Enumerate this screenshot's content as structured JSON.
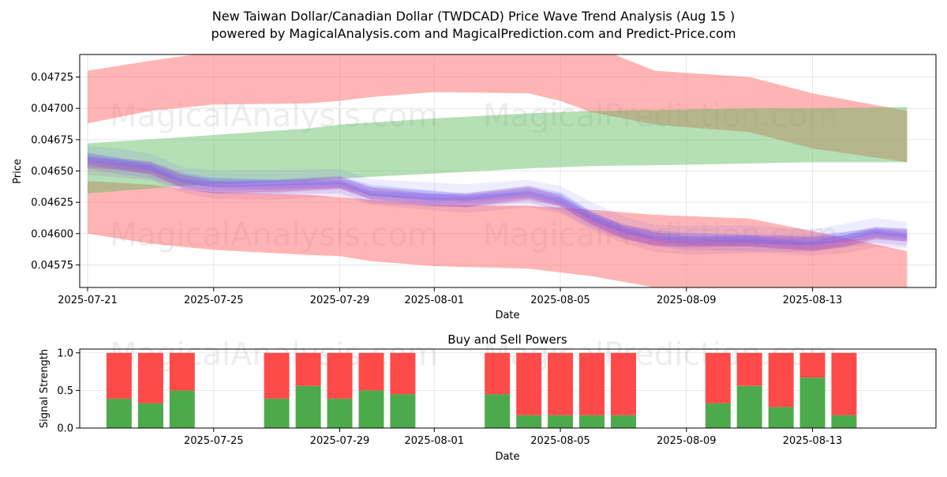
{
  "header": {
    "title": "New Taiwan Dollar/Canadian Dollar (TWDCAD) Price Wave Trend Analysis (Aug 15 )",
    "subtitle": "powered by MagicalAnalysis.com and MagicalPrediction.com and Predict-Price.com"
  },
  "watermarks": [
    "MagicalAnalysis.com",
    "MagicalPrediction.com"
  ],
  "colors": {
    "red_band": "#ff6b6b",
    "green_band": "#5cb85c",
    "blue_wave": "#6b6bff",
    "purple_wave": "#b04bb0",
    "buy": "#4caa4c",
    "sell": "#ff4a4a"
  },
  "chart_data": [
    {
      "type": "area",
      "title": "",
      "xlabel": "Date",
      "ylabel": "Price",
      "xlim": [
        "2025-07-20T18:00",
        "2025-08-16T22:00"
      ],
      "ylim": [
        0.04557,
        0.04743
      ],
      "x_ticks": [
        "2025-07-21",
        "2025-07-25",
        "2025-07-29",
        "2025-08-01",
        "2025-08-05",
        "2025-08-09",
        "2025-08-13"
      ],
      "y_ticks": [
        0.04575,
        0.046,
        0.04625,
        0.0465,
        0.04675,
        0.047,
        0.04725
      ],
      "grid": true,
      "bands": [
        {
          "color": "red",
          "x": [
            "2025-07-21",
            "2025-07-23",
            "2025-07-25",
            "2025-07-28",
            "2025-07-29",
            "2025-07-30",
            "2025-08-01",
            "2025-08-04",
            "2025-08-05",
            "2025-08-06",
            "2025-08-08",
            "2025-08-11",
            "2025-08-13",
            "2025-08-16"
          ],
          "upper": [
            0.0473,
            0.04738,
            0.04745,
            0.04748,
            0.0475,
            0.0475,
            0.0475,
            0.0475,
            0.0475,
            0.0475,
            0.0473,
            0.04725,
            0.04712,
            0.04698
          ],
          "lower": [
            0.04688,
            0.04698,
            0.04703,
            0.04704,
            0.04706,
            0.04709,
            0.04713,
            0.04712,
            0.04706,
            0.04697,
            0.04687,
            0.04681,
            0.04668,
            0.04657
          ]
        },
        {
          "color": "red",
          "x": [
            "2025-07-21",
            "2025-07-23",
            "2025-07-25",
            "2025-07-28",
            "2025-07-29",
            "2025-07-30",
            "2025-08-01",
            "2025-08-04",
            "2025-08-05",
            "2025-08-06",
            "2025-08-08",
            "2025-08-11",
            "2025-08-13",
            "2025-08-16"
          ],
          "upper": [
            0.04642,
            0.04639,
            0.04633,
            0.04631,
            0.04629,
            0.04627,
            0.04623,
            0.04622,
            0.04621,
            0.04619,
            0.04615,
            0.04612,
            0.04602,
            0.04586
          ],
          "lower": [
            0.046,
            0.04592,
            0.04587,
            0.04583,
            0.04582,
            0.04578,
            0.04574,
            0.04572,
            0.04569,
            0.04566,
            0.04557,
            0.04545,
            0.04535,
            0.0452
          ]
        },
        {
          "color": "green",
          "x": [
            "2025-07-21",
            "2025-07-24",
            "2025-07-28",
            "2025-07-29",
            "2025-08-01",
            "2025-08-04",
            "2025-08-06",
            "2025-08-09",
            "2025-08-11",
            "2025-08-13",
            "2025-08-16"
          ],
          "upper": [
            0.04672,
            0.04677,
            0.04684,
            0.04687,
            0.04692,
            0.04696,
            0.04698,
            0.04699,
            0.047,
            0.047,
            0.04701
          ],
          "lower": [
            0.04632,
            0.04638,
            0.04642,
            0.04644,
            0.04648,
            0.04652,
            0.04654,
            0.04655,
            0.04656,
            0.04657,
            0.04657
          ]
        }
      ],
      "wave_center": {
        "x": [
          "2025-07-21",
          "2025-07-22",
          "2025-07-23",
          "2025-07-24",
          "2025-07-25",
          "2025-07-27",
          "2025-07-29",
          "2025-07-30",
          "2025-08-01",
          "2025-08-02",
          "2025-08-04",
          "2025-08-05",
          "2025-08-06",
          "2025-08-07",
          "2025-08-08",
          "2025-08-09",
          "2025-08-11",
          "2025-08-12",
          "2025-08-13",
          "2025-08-14",
          "2025-08-15",
          "2025-08-16"
        ],
        "y": [
          0.04658,
          0.04655,
          0.04652,
          0.04642,
          0.04638,
          0.04638,
          0.0464,
          0.04632,
          0.04628,
          0.04627,
          0.04632,
          0.04626,
          0.04612,
          0.04602,
          0.04596,
          0.04594,
          0.04594,
          0.04593,
          0.04592,
          0.04595,
          0.046,
          0.04598
        ]
      }
    },
    {
      "type": "bar",
      "title": "Buy and Sell Powers",
      "xlabel": "Date",
      "ylabel": "Signal Strength",
      "xlim": [
        "2025-07-20T18:00",
        "2025-08-16T22:00"
      ],
      "ylim": [
        0,
        1.05
      ],
      "x_ticks": [
        "2025-07-25",
        "2025-07-29",
        "2025-08-01",
        "2025-08-05",
        "2025-08-09",
        "2025-08-13"
      ],
      "y_ticks": [
        "0.0",
        "0.5",
        "1.0"
      ],
      "grid": true,
      "categories": [
        "2025-07-22",
        "2025-07-23",
        "2025-07-24",
        "2025-07-27",
        "2025-07-28",
        "2025-07-29",
        "2025-07-30",
        "2025-07-31",
        "2025-08-03",
        "2025-08-04",
        "2025-08-05",
        "2025-08-06",
        "2025-08-07",
        "2025-08-10",
        "2025-08-11",
        "2025-08-12",
        "2025-08-13",
        "2025-08-14"
      ],
      "series": [
        {
          "color": "green",
          "values": [
            0.39,
            0.33,
            0.5,
            0.39,
            0.56,
            0.39,
            0.5,
            0.45,
            0.45,
            0.17,
            0.17,
            0.17,
            0.17,
            0.33,
            0.56,
            0.28,
            0.67,
            0.17
          ]
        },
        {
          "color": "red",
          "values": [
            0.61,
            0.67,
            0.5,
            0.61,
            0.44,
            0.61,
            0.5,
            0.55,
            0.55,
            0.83,
            0.83,
            0.83,
            0.83,
            0.67,
            0.44,
            0.72,
            0.33,
            0.83
          ]
        }
      ]
    }
  ]
}
